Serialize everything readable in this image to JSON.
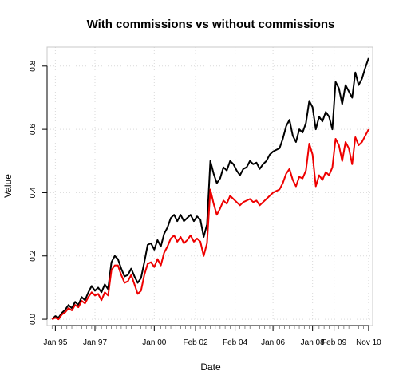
{
  "chart_data": {
    "type": "line",
    "title": "With commissions vs without commissions",
    "xlabel": "Date",
    "ylabel": "Value",
    "xlim": [
      "1994-08-01",
      "2011-01-15"
    ],
    "ylim": [
      -0.02,
      0.86
    ],
    "grid": true,
    "x_tick_labels": [
      {
        "label": "Jan 95",
        "date": "1995-01-01"
      },
      {
        "label": "Jan 97",
        "date": "1997-01-01"
      },
      {
        "label": "Jan 00",
        "date": "2000-01-01"
      },
      {
        "label": "Feb 02",
        "date": "2002-02-01"
      },
      {
        "label": "Feb 04",
        "date": "2004-02-01"
      },
      {
        "label": "Jan 06",
        "date": "2006-01-01"
      },
      {
        "label": "Jan 08",
        "date": "2008-01-01"
      },
      {
        "label": "Feb 09",
        "date": "2009-02-01"
      },
      {
        "label": "Nov 10",
        "date": "2010-11-01"
      }
    ],
    "y_tick_labels": [
      {
        "label": "0.0",
        "value": 0.0
      },
      {
        "label": "0.2",
        "value": 0.2
      },
      {
        "label": "0.4",
        "value": 0.4
      },
      {
        "label": "0.6",
        "value": 0.6
      },
      {
        "label": "0.8",
        "value": 0.8
      }
    ],
    "series": [
      {
        "color": "#000000",
        "points": [
          [
            "1994-11-01",
            0.0
          ],
          [
            "1995-01-01",
            0.01
          ],
          [
            "1995-03-01",
            0.005
          ],
          [
            "1995-05-01",
            0.02
          ],
          [
            "1995-07-01",
            0.03
          ],
          [
            "1995-09-01",
            0.045
          ],
          [
            "1995-11-01",
            0.035
          ],
          [
            "1996-01-01",
            0.055
          ],
          [
            "1996-03-01",
            0.045
          ],
          [
            "1996-05-01",
            0.07
          ],
          [
            "1996-07-01",
            0.06
          ],
          [
            "1996-09-01",
            0.085
          ],
          [
            "1996-11-01",
            0.105
          ],
          [
            "1997-01-01",
            0.09
          ],
          [
            "1997-03-01",
            0.1
          ],
          [
            "1997-05-01",
            0.085
          ],
          [
            "1997-07-01",
            0.11
          ],
          [
            "1997-09-01",
            0.095
          ],
          [
            "1997-11-01",
            0.18
          ],
          [
            "1998-01-01",
            0.2
          ],
          [
            "1998-03-01",
            0.19
          ],
          [
            "1998-05-01",
            0.16
          ],
          [
            "1998-07-01",
            0.135
          ],
          [
            "1998-09-01",
            0.14
          ],
          [
            "1998-11-01",
            0.16
          ],
          [
            "1999-01-01",
            0.135
          ],
          [
            "1999-03-01",
            0.115
          ],
          [
            "1999-05-01",
            0.13
          ],
          [
            "1999-07-01",
            0.18
          ],
          [
            "1999-09-01",
            0.235
          ],
          [
            "1999-11-01",
            0.24
          ],
          [
            "2000-01-01",
            0.22
          ],
          [
            "2000-03-01",
            0.25
          ],
          [
            "2000-05-01",
            0.23
          ],
          [
            "2000-07-01",
            0.27
          ],
          [
            "2000-09-01",
            0.29
          ],
          [
            "2000-11-01",
            0.32
          ],
          [
            "2001-01-01",
            0.33
          ],
          [
            "2001-03-01",
            0.31
          ],
          [
            "2001-05-01",
            0.33
          ],
          [
            "2001-07-01",
            0.31
          ],
          [
            "2001-09-01",
            0.32
          ],
          [
            "2001-11-01",
            0.33
          ],
          [
            "2002-01-01",
            0.31
          ],
          [
            "2002-03-01",
            0.325
          ],
          [
            "2002-05-01",
            0.315
          ],
          [
            "2002-07-01",
            0.26
          ],
          [
            "2002-09-01",
            0.3
          ],
          [
            "2002-11-01",
            0.5
          ],
          [
            "2003-01-01",
            0.46
          ],
          [
            "2003-03-01",
            0.43
          ],
          [
            "2003-05-01",
            0.445
          ],
          [
            "2003-07-01",
            0.48
          ],
          [
            "2003-09-01",
            0.47
          ],
          [
            "2003-11-01",
            0.5
          ],
          [
            "2004-01-01",
            0.49
          ],
          [
            "2004-03-01",
            0.47
          ],
          [
            "2004-05-01",
            0.455
          ],
          [
            "2004-07-01",
            0.475
          ],
          [
            "2004-09-01",
            0.48
          ],
          [
            "2004-11-01",
            0.5
          ],
          [
            "2005-01-01",
            0.49
          ],
          [
            "2005-03-01",
            0.495
          ],
          [
            "2005-05-01",
            0.475
          ],
          [
            "2005-07-01",
            0.49
          ],
          [
            "2005-09-01",
            0.5
          ],
          [
            "2005-11-01",
            0.52
          ],
          [
            "2006-01-01",
            0.53
          ],
          [
            "2006-03-01",
            0.535
          ],
          [
            "2006-05-01",
            0.54
          ],
          [
            "2006-07-01",
            0.57
          ],
          [
            "2006-09-01",
            0.61
          ],
          [
            "2006-11-01",
            0.63
          ],
          [
            "2007-01-01",
            0.58
          ],
          [
            "2007-03-01",
            0.56
          ],
          [
            "2007-05-01",
            0.6
          ],
          [
            "2007-07-01",
            0.59
          ],
          [
            "2007-09-01",
            0.62
          ],
          [
            "2007-11-01",
            0.69
          ],
          [
            "2008-01-01",
            0.67
          ],
          [
            "2008-03-01",
            0.6
          ],
          [
            "2008-05-01",
            0.64
          ],
          [
            "2008-07-01",
            0.625
          ],
          [
            "2008-09-01",
            0.655
          ],
          [
            "2008-11-01",
            0.64
          ],
          [
            "2009-01-01",
            0.6
          ],
          [
            "2009-03-01",
            0.75
          ],
          [
            "2009-05-01",
            0.73
          ],
          [
            "2009-07-01",
            0.68
          ],
          [
            "2009-09-01",
            0.74
          ],
          [
            "2009-11-01",
            0.72
          ],
          [
            "2010-01-01",
            0.7
          ],
          [
            "2010-03-01",
            0.78
          ],
          [
            "2010-05-01",
            0.74
          ],
          [
            "2010-07-01",
            0.76
          ],
          [
            "2010-09-01",
            0.795
          ],
          [
            "2010-11-01",
            0.825
          ]
        ]
      },
      {
        "color": "#ee0000",
        "points": [
          [
            "1994-11-01",
            0.0
          ],
          [
            "1995-01-01",
            0.005
          ],
          [
            "1995-03-01",
            0.0
          ],
          [
            "1995-05-01",
            0.015
          ],
          [
            "1995-07-01",
            0.022
          ],
          [
            "1995-09-01",
            0.035
          ],
          [
            "1995-11-01",
            0.028
          ],
          [
            "1996-01-01",
            0.045
          ],
          [
            "1996-03-01",
            0.038
          ],
          [
            "1996-05-01",
            0.058
          ],
          [
            "1996-07-01",
            0.05
          ],
          [
            "1996-09-01",
            0.07
          ],
          [
            "1996-11-01",
            0.085
          ],
          [
            "1997-01-01",
            0.075
          ],
          [
            "1997-03-01",
            0.08
          ],
          [
            "1997-05-01",
            0.06
          ],
          [
            "1997-07-01",
            0.085
          ],
          [
            "1997-09-01",
            0.075
          ],
          [
            "1997-11-01",
            0.155
          ],
          [
            "1998-01-01",
            0.17
          ],
          [
            "1998-03-01",
            0.17
          ],
          [
            "1998-05-01",
            0.14
          ],
          [
            "1998-07-01",
            0.115
          ],
          [
            "1998-09-01",
            0.12
          ],
          [
            "1998-11-01",
            0.14
          ],
          [
            "1999-01-01",
            0.11
          ],
          [
            "1999-03-01",
            0.08
          ],
          [
            "1999-05-01",
            0.09
          ],
          [
            "1999-07-01",
            0.14
          ],
          [
            "1999-09-01",
            0.175
          ],
          [
            "1999-11-01",
            0.18
          ],
          [
            "2000-01-01",
            0.165
          ],
          [
            "2000-03-01",
            0.19
          ],
          [
            "2000-05-01",
            0.17
          ],
          [
            "2000-07-01",
            0.21
          ],
          [
            "2000-09-01",
            0.23
          ],
          [
            "2000-11-01",
            0.255
          ],
          [
            "2001-01-01",
            0.265
          ],
          [
            "2001-03-01",
            0.245
          ],
          [
            "2001-05-01",
            0.26
          ],
          [
            "2001-07-01",
            0.24
          ],
          [
            "2001-09-01",
            0.25
          ],
          [
            "2001-11-01",
            0.265
          ],
          [
            "2002-01-01",
            0.245
          ],
          [
            "2002-03-01",
            0.255
          ],
          [
            "2002-05-01",
            0.245
          ],
          [
            "2002-07-01",
            0.2
          ],
          [
            "2002-09-01",
            0.24
          ],
          [
            "2002-11-01",
            0.41
          ],
          [
            "2003-01-01",
            0.365
          ],
          [
            "2003-03-01",
            0.33
          ],
          [
            "2003-05-01",
            0.35
          ],
          [
            "2003-07-01",
            0.375
          ],
          [
            "2003-09-01",
            0.365
          ],
          [
            "2003-11-01",
            0.39
          ],
          [
            "2004-01-01",
            0.38
          ],
          [
            "2004-03-01",
            0.37
          ],
          [
            "2004-05-01",
            0.36
          ],
          [
            "2004-07-01",
            0.37
          ],
          [
            "2004-09-01",
            0.375
          ],
          [
            "2004-11-01",
            0.38
          ],
          [
            "2005-01-01",
            0.37
          ],
          [
            "2005-03-01",
            0.375
          ],
          [
            "2005-05-01",
            0.36
          ],
          [
            "2005-07-01",
            0.37
          ],
          [
            "2005-09-01",
            0.38
          ],
          [
            "2005-11-01",
            0.39
          ],
          [
            "2006-01-01",
            0.4
          ],
          [
            "2006-03-01",
            0.405
          ],
          [
            "2006-05-01",
            0.41
          ],
          [
            "2006-07-01",
            0.43
          ],
          [
            "2006-09-01",
            0.46
          ],
          [
            "2006-11-01",
            0.475
          ],
          [
            "2007-01-01",
            0.44
          ],
          [
            "2007-03-01",
            0.42
          ],
          [
            "2007-05-01",
            0.45
          ],
          [
            "2007-07-01",
            0.445
          ],
          [
            "2007-09-01",
            0.47
          ],
          [
            "2007-11-01",
            0.555
          ],
          [
            "2008-01-01",
            0.52
          ],
          [
            "2008-03-01",
            0.42
          ],
          [
            "2008-05-01",
            0.455
          ],
          [
            "2008-07-01",
            0.44
          ],
          [
            "2008-09-01",
            0.465
          ],
          [
            "2008-11-01",
            0.455
          ],
          [
            "2009-01-01",
            0.48
          ],
          [
            "2009-03-01",
            0.57
          ],
          [
            "2009-05-01",
            0.55
          ],
          [
            "2009-07-01",
            0.5
          ],
          [
            "2009-09-01",
            0.56
          ],
          [
            "2009-11-01",
            0.54
          ],
          [
            "2010-01-01",
            0.49
          ],
          [
            "2010-03-01",
            0.575
          ],
          [
            "2010-05-01",
            0.55
          ],
          [
            "2010-07-01",
            0.56
          ],
          [
            "2010-09-01",
            0.58
          ],
          [
            "2010-11-01",
            0.6
          ]
        ]
      }
    ]
  }
}
